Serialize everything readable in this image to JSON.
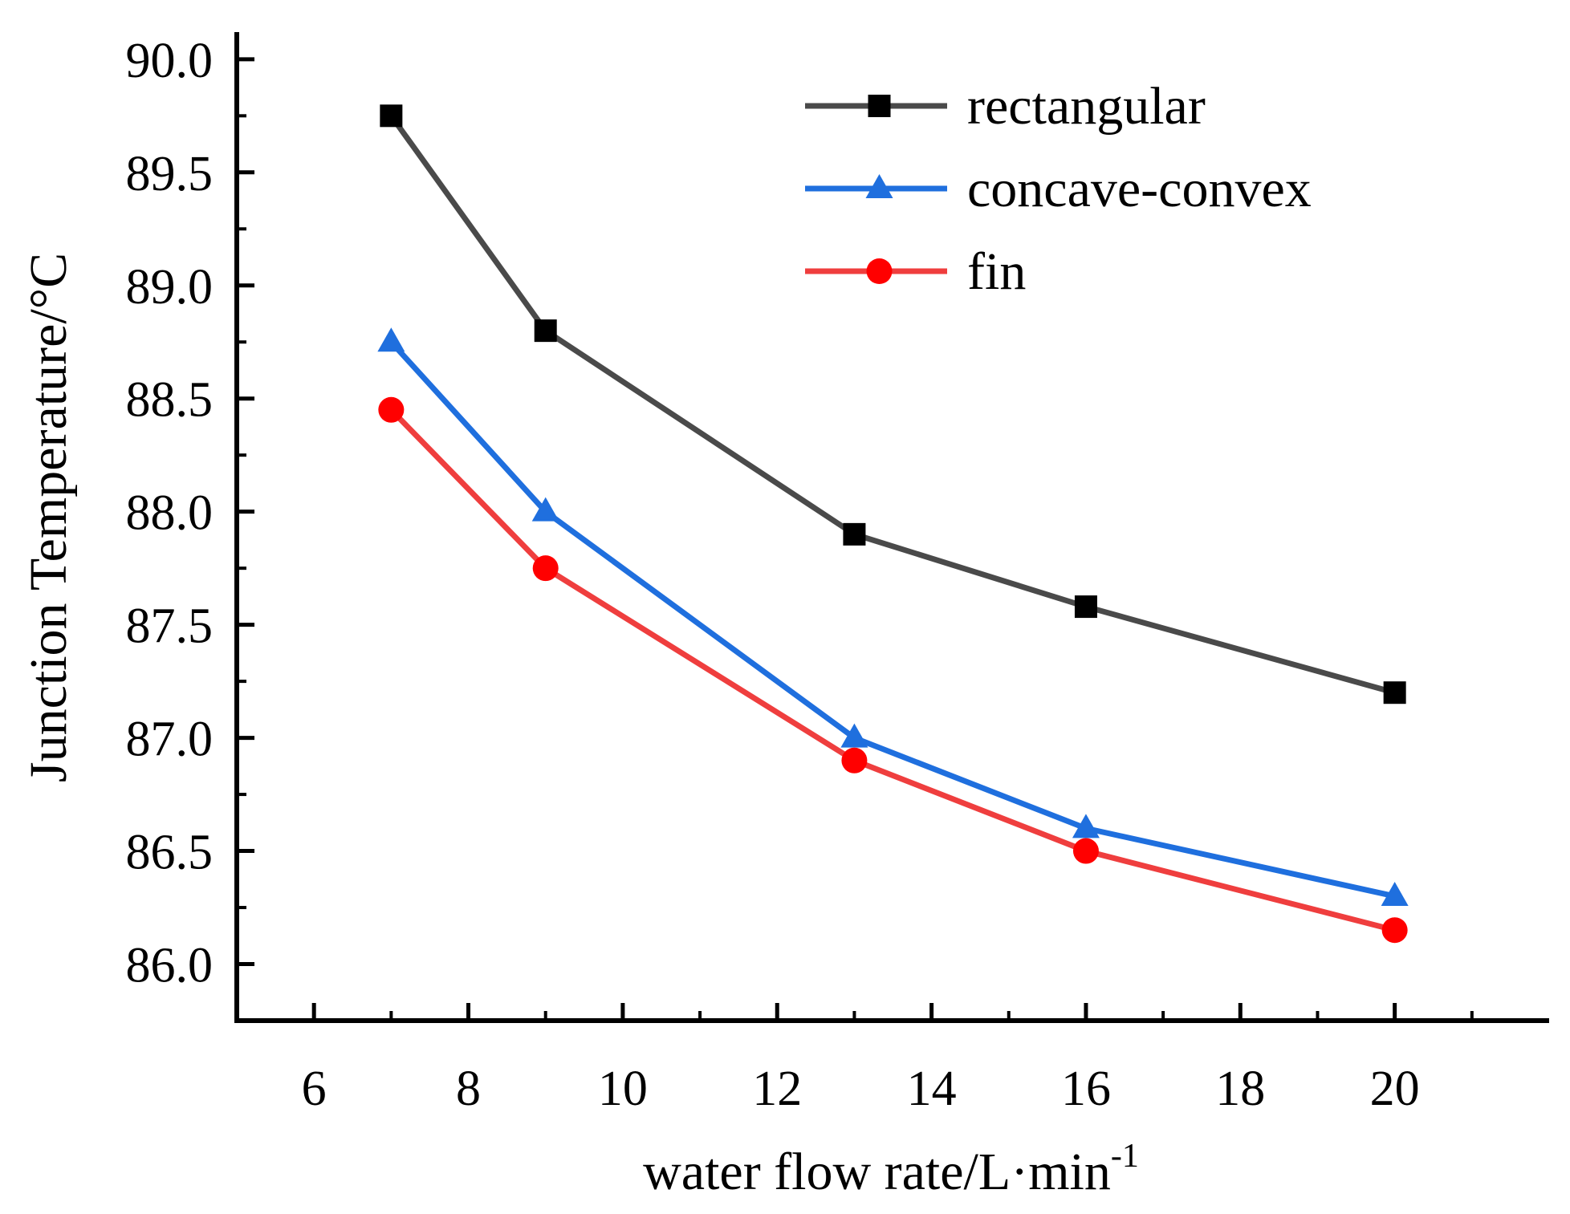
{
  "chart_data": {
    "type": "line",
    "title": "",
    "xlabel": "water flow rate/L·min",
    "xlabel_superscript": "-1",
    "ylabel": "Junction Temperature/°C",
    "xlim": [
      5,
      22
    ],
    "ylim": [
      85.75,
      90.12
    ],
    "x_ticks": [
      6,
      8,
      10,
      12,
      14,
      16,
      18,
      20
    ],
    "x_tick_labels": [
      "6",
      "8",
      "10",
      "12",
      "14",
      "16",
      "18",
      "20"
    ],
    "y_ticks": [
      86.0,
      86.5,
      87.0,
      87.5,
      88.0,
      88.5,
      89.0,
      89.5,
      90.0
    ],
    "y_tick_labels": [
      "86.0",
      "86.5",
      "87.0",
      "87.5",
      "88.0",
      "88.5",
      "89.0",
      "89.5",
      "90.0"
    ],
    "grid": false,
    "legend_position": "top-right",
    "x": [
      7,
      9,
      13,
      16,
      20
    ],
    "series": [
      {
        "name": "rectangular",
        "marker": "square",
        "color": "#4a4a4a",
        "marker_color": "#000000",
        "values": [
          89.75,
          88.8,
          87.9,
          87.58,
          87.2
        ]
      },
      {
        "name": "concave-convex",
        "marker": "triangle",
        "color": "#1f6fde",
        "marker_color": "#1f6fde",
        "values": [
          88.75,
          88.0,
          87.0,
          86.6,
          86.3
        ]
      },
      {
        "name": "fin",
        "marker": "circle",
        "color": "#ef3e3e",
        "marker_color": "#ff0000",
        "values": [
          88.45,
          87.75,
          86.9,
          86.5,
          86.15
        ]
      }
    ]
  }
}
